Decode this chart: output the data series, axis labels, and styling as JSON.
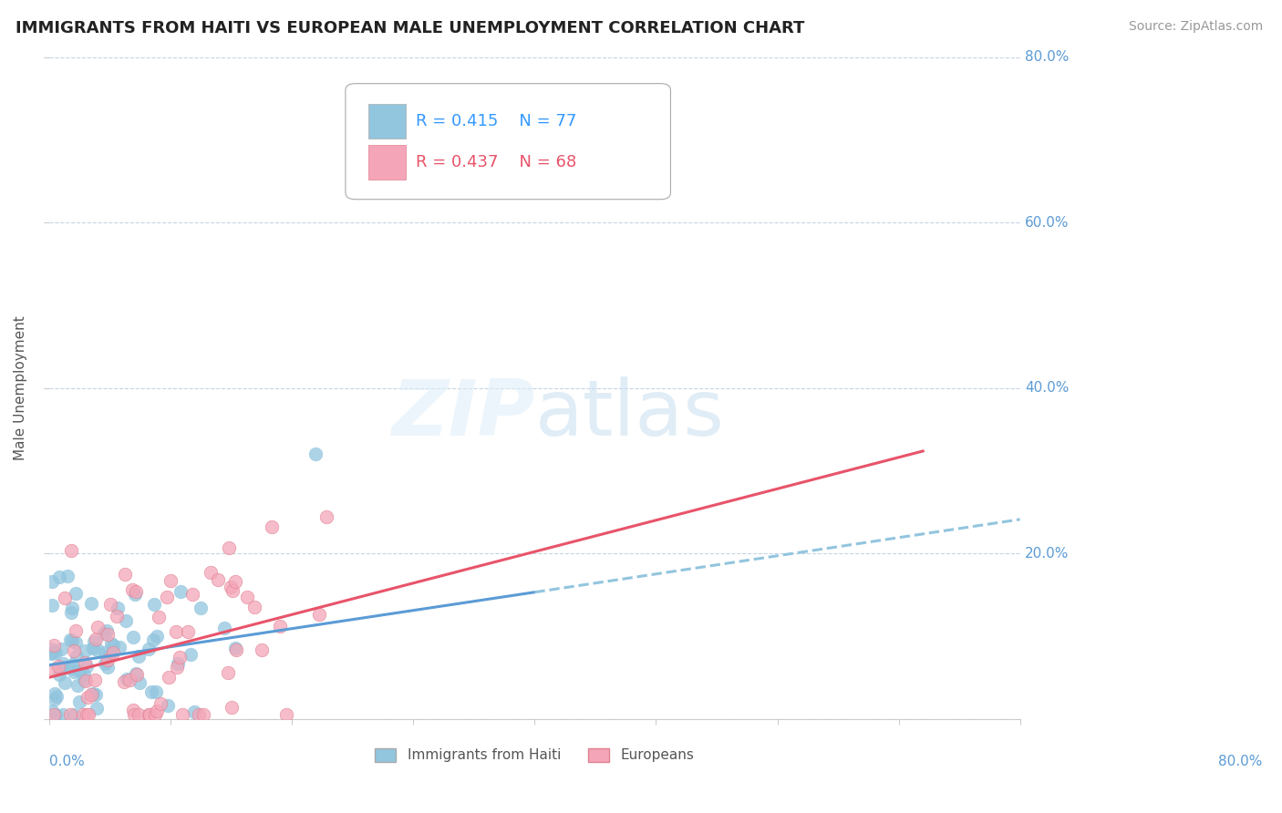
{
  "title": "IMMIGRANTS FROM HAITI VS EUROPEAN MALE UNEMPLOYMENT CORRELATION CHART",
  "source": "Source: ZipAtlas.com",
  "ylabel": "Male Unemployment",
  "legend_haiti": "Immigrants from Haiti",
  "legend_europeans": "Europeans",
  "r_haiti": "R = 0.415",
  "n_haiti": "N = 77",
  "r_europeans": "R = 0.437",
  "n_europeans": "N = 68",
  "color_haiti": "#92c5de",
  "color_europeans": "#f4a6b8",
  "color_axis_text": "#5b9bd5",
  "background": "#ffffff",
  "xmin": 0.0,
  "xmax": 0.8,
  "ymin": 0.0,
  "ymax": 0.8,
  "haiti_slope": 0.22,
  "haiti_intercept": 0.065,
  "europeans_slope": 0.38,
  "europeans_intercept": 0.05
}
